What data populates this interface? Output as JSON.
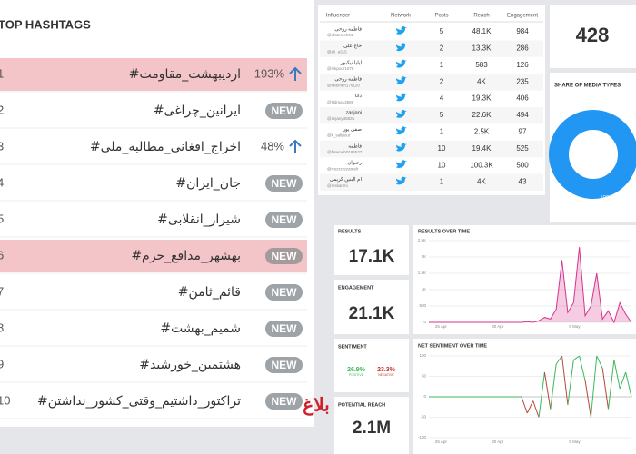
{
  "top_hashtags": {
    "title": "TOP HASHTAGS",
    "rows": [
      {
        "rank": 1,
        "tag": "اردیبهشت_مقاومت#",
        "change": "193%",
        "highlight": true
      },
      {
        "rank": 2,
        "tag": "ایرانین_چراغی#",
        "badge": "NEW"
      },
      {
        "rank": 3,
        "tag": "اخراج_افغانی_مطالبه_ملی#",
        "change": "48%"
      },
      {
        "rank": 4,
        "tag": "جان_ایران#",
        "badge": "NEW"
      },
      {
        "rank": 5,
        "tag": "شیراز_انقلابی#",
        "badge": "NEW"
      },
      {
        "rank": 6,
        "tag": "بهشهر_مدافع_حرم#",
        "badge": "NEW",
        "highlight": true
      },
      {
        "rank": 7,
        "tag": "قائم_ثامن#",
        "badge": "NEW"
      },
      {
        "rank": 8,
        "tag": "شمیم_بهشت#",
        "badge": "NEW"
      },
      {
        "rank": 9,
        "tag": "هشتمین_خورشید#",
        "badge": "NEW"
      },
      {
        "rank": 10,
        "tag": "تراکتور_داشتیم_وقتی_کشور_نداشتن#",
        "badge": "NEW"
      }
    ]
  },
  "influencers": {
    "columns": [
      "Influencer",
      "Network",
      "Posts",
      "Reach",
      "Engagement"
    ],
    "rows": [
      {
        "name": "فاطمه روحی",
        "handle": "@afatemeh91",
        "posts": 5,
        "reach": "48.1K",
        "engagement": 984
      },
      {
        "name": "حاج علی",
        "handle": "@ali_a315",
        "posts": 2,
        "reach": "13.3K",
        "engagement": 286
      },
      {
        "name": "ایلیا نیکپور",
        "handle": "@nikpoor1078",
        "posts": 1,
        "reach": 583,
        "engagement": 126
      },
      {
        "name": "فاطمه روحی",
        "handle": "@fatemeh176120",
        "posts": 2,
        "reach": "4K",
        "engagement": 235
      },
      {
        "name": "دانا",
        "handle": "@Ndma13589",
        "posts": 4,
        "reach": "19.3K",
        "engagement": 406
      },
      {
        "name": "zanjani",
        "handle": "@znjany45835",
        "posts": 5,
        "reach": "22.6K",
        "engagement": 494
      },
      {
        "name": "صفی پور",
        "handle": "@k_safipour",
        "posts": 1,
        "reach": "2.5K",
        "engagement": 97
      },
      {
        "name": "فاطمه",
        "handle": "@fatemeh0186527",
        "posts": 10,
        "reach": "19.4K",
        "engagement": 525
      },
      {
        "name": "رضوان",
        "handle": "@rrezzzrezameh",
        "posts": 10,
        "reach": "100.3K",
        "engagement": 500
      },
      {
        "name": "ام البنین کریمی",
        "handle": "@mskarimi",
        "posts": 1,
        "reach": "4K",
        "engagement": 43
      }
    ]
  },
  "total": 428,
  "media_types": {
    "title": "SHARE OF MEDIA TYPES",
    "share": {
      "value": 100,
      "label": "100%"
    },
    "color": "#2196f3"
  },
  "stats": {
    "results": {
      "title": "RESULTS",
      "value": "17.1K"
    },
    "engagement": {
      "title": "ENGAGEMENT",
      "value": "21.1K"
    },
    "sentiment": {
      "title": "SENTIMENT",
      "positive": "26.9%",
      "positive_label": "POSITIVE",
      "negative": "23.3%",
      "negative_label": "NEGATIVE"
    },
    "potential_reach": {
      "title": "POTENTIAL REACH",
      "value": "2.1M"
    }
  },
  "results_over_time": {
    "type": "area",
    "title": "RESULTS OVER TIME",
    "x_labels": [
      "25 Apr",
      "30 Apr",
      "5 May"
    ],
    "ylim": [
      0,
      2500
    ],
    "yticks": [
      0,
      {
        "value": 500,
        "label": "500"
      },
      {
        "value": 1000,
        "label": "1K"
      },
      {
        "value": 1500,
        "label": "1.5K"
      },
      {
        "value": 2000,
        "label": "2K"
      },
      {
        "value": 2500,
        "label": "2.5K"
      }
    ],
    "color": "#d6338c",
    "values": [
      0,
      0,
      0,
      0,
      0,
      0,
      0,
      0,
      0,
      0,
      0,
      0,
      0,
      0,
      0,
      0,
      0,
      20,
      0,
      50,
      150,
      100,
      400,
      1900,
      300,
      600,
      2300,
      200,
      500,
      1500,
      100,
      350,
      0,
      600,
      250,
      0
    ]
  },
  "net_sentiment_over_time": {
    "type": "signed-line",
    "title": "NET SENTIMENT OVER TIME",
    "x_labels": [
      "25 Apr",
      "30 Apr",
      "5 May"
    ],
    "ylim": [
      -100,
      100
    ],
    "yticks": [
      -100,
      -50,
      0,
      50,
      100
    ],
    "positive_color": "#3cb95a",
    "negative_color": "#b5473a",
    "values": [
      0,
      0,
      0,
      0,
      0,
      0,
      0,
      0,
      0,
      0,
      0,
      0,
      0,
      0,
      0,
      0,
      0,
      -40,
      -10,
      -50,
      60,
      -30,
      80,
      100,
      -20,
      90,
      100,
      40,
      -50,
      100,
      70,
      -30,
      90,
      20,
      60,
      0
    ]
  },
  "watermark": "بلاغ"
}
